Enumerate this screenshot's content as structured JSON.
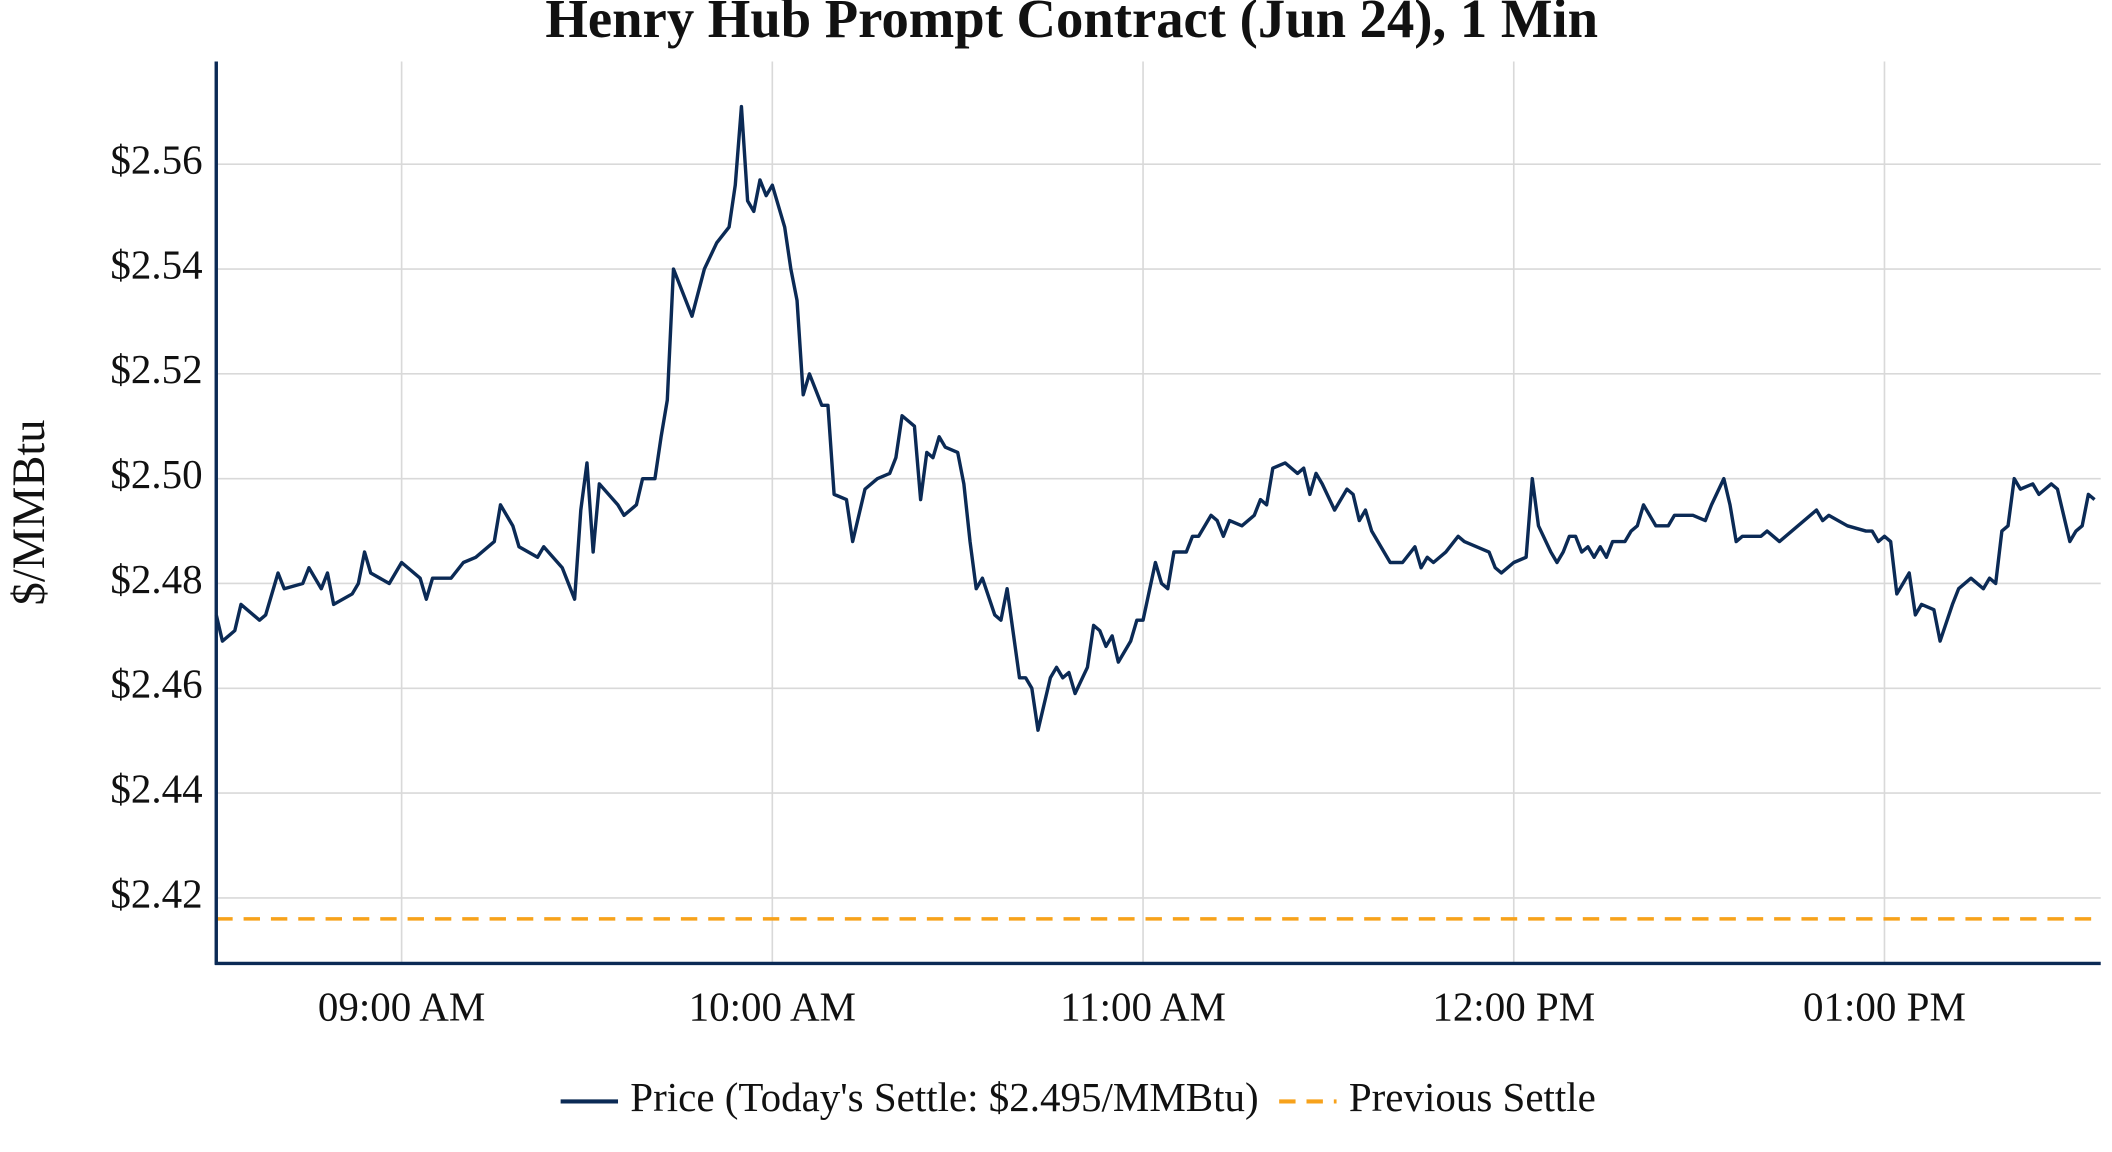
{
  "chart_data": {
    "type": "line",
    "title": "Henry Hub Prompt Contract (Jun 24), 1 Min",
    "y_label": "$/MMBtu",
    "x": [
      "08:30",
      "08:31",
      "08:33",
      "08:34",
      "08:37",
      "08:38",
      "08:40",
      "08:41",
      "08:44",
      "08:45",
      "08:47",
      "08:48",
      "08:49",
      "08:52",
      "08:53",
      "08:54",
      "08:55",
      "08:58",
      "09:00",
      "09:03",
      "09:04",
      "09:05",
      "09:08",
      "09:10",
      "09:12",
      "09:15",
      "09:16",
      "09:18",
      "09:19",
      "09:22",
      "09:23",
      "09:26",
      "09:28",
      "09:29",
      "09:30",
      "09:31",
      "09:32",
      "09:35",
      "09:36",
      "09:38",
      "09:39",
      "09:41",
      "09:42",
      "09:43",
      "09:44",
      "09:47",
      "09:49",
      "09:51",
      "09:53",
      "09:54",
      "09:55",
      "09:56",
      "09:57",
      "09:58",
      "09:59",
      "10:00",
      "10:02",
      "10:03",
      "10:04",
      "10:05",
      "10:06",
      "10:08",
      "10:09",
      "10:10",
      "10:12",
      "10:13",
      "10:15",
      "10:17",
      "10:19",
      "10:20",
      "10:21",
      "10:23",
      "10:24",
      "10:25",
      "10:26",
      "10:27",
      "10:28",
      "10:30",
      "10:31",
      "10:32",
      "10:33",
      "10:34",
      "10:36",
      "10:37",
      "10:38",
      "10:40",
      "10:41",
      "10:42",
      "10:43",
      "10:45",
      "10:46",
      "10:47",
      "10:48",
      "10:49",
      "10:51",
      "10:52",
      "10:53",
      "10:54",
      "10:55",
      "10:56",
      "10:58",
      "10:59",
      "11:00",
      "11:02",
      "11:03",
      "11:04",
      "11:05",
      "11:07",
      "11:08",
      "11:09",
      "11:11",
      "11:12",
      "11:13",
      "11:14",
      "11:16",
      "11:18",
      "11:19",
      "11:20",
      "11:21",
      "11:23",
      "11:25",
      "11:26",
      "11:27",
      "11:28",
      "11:29",
      "11:31",
      "11:33",
      "11:34",
      "11:35",
      "11:36",
      "11:37",
      "11:38",
      "11:40",
      "11:42",
      "11:44",
      "11:45",
      "11:46",
      "11:47",
      "11:49",
      "11:51",
      "11:52",
      "11:54",
      "11:56",
      "11:57",
      "11:58",
      "12:00",
      "12:02",
      "12:03",
      "12:04",
      "12:06",
      "12:07",
      "12:08",
      "12:09",
      "12:10",
      "12:11",
      "12:12",
      "12:13",
      "12:14",
      "12:15",
      "12:16",
      "12:18",
      "12:19",
      "12:20",
      "12:21",
      "12:23",
      "12:25",
      "12:26",
      "12:29",
      "12:31",
      "12:32",
      "12:34",
      "12:35",
      "12:36",
      "12:37",
      "12:40",
      "12:41",
      "12:43",
      "12:45",
      "12:47",
      "12:49",
      "12:50",
      "12:51",
      "12:54",
      "12:57",
      "12:58",
      "12:59",
      "13:00",
      "13:01",
      "13:02",
      "13:03",
      "13:04",
      "13:05",
      "13:06",
      "13:08",
      "13:09",
      "13:11",
      "13:12",
      "13:13",
      "13:14",
      "13:16",
      "13:17",
      "13:18",
      "13:19",
      "13:20",
      "13:21",
      "13:22",
      "13:24",
      "13:25",
      "13:27",
      "13:28",
      "13:30",
      "13:31",
      "13:32",
      "13:33",
      "13:34"
    ],
    "series": [
      {
        "name": "Price (Today's Settle: $2.495/MMBtu)",
        "color": "#0b2a55",
        "values": [
          2.474,
          2.469,
          2.471,
          2.476,
          2.473,
          2.474,
          2.482,
          2.479,
          2.48,
          2.483,
          2.479,
          2.482,
          2.476,
          2.478,
          2.48,
          2.486,
          2.482,
          2.48,
          2.484,
          2.481,
          2.477,
          2.481,
          2.481,
          2.484,
          2.485,
          2.488,
          2.495,
          2.491,
          2.487,
          2.485,
          2.487,
          2.483,
          2.477,
          2.494,
          2.503,
          2.486,
          2.499,
          2.495,
          2.493,
          2.495,
          2.5,
          2.5,
          2.508,
          2.515,
          2.54,
          2.531,
          2.54,
          2.545,
          2.548,
          2.556,
          2.571,
          2.553,
          2.551,
          2.557,
          2.554,
          2.556,
          2.548,
          2.54,
          2.534,
          2.516,
          2.52,
          2.514,
          2.514,
          2.497,
          2.496,
          2.488,
          2.498,
          2.5,
          2.501,
          2.504,
          2.512,
          2.51,
          2.496,
          2.505,
          2.504,
          2.508,
          2.506,
          2.505,
          2.499,
          2.488,
          2.479,
          2.481,
          2.474,
          2.473,
          2.479,
          2.462,
          2.462,
          2.46,
          2.452,
          2.462,
          2.464,
          2.462,
          2.463,
          2.459,
          2.464,
          2.472,
          2.471,
          2.468,
          2.47,
          2.465,
          2.469,
          2.473,
          2.473,
          2.484,
          2.48,
          2.479,
          2.486,
          2.486,
          2.489,
          2.489,
          2.493,
          2.492,
          2.489,
          2.492,
          2.491,
          2.493,
          2.496,
          2.495,
          2.502,
          2.503,
          2.501,
          2.502,
          2.497,
          2.501,
          2.499,
          2.494,
          2.498,
          2.497,
          2.492,
          2.494,
          2.49,
          2.488,
          2.484,
          2.484,
          2.487,
          2.483,
          2.485,
          2.484,
          2.486,
          2.489,
          2.488,
          2.487,
          2.486,
          2.483,
          2.482,
          2.484,
          2.485,
          2.5,
          2.491,
          2.486,
          2.484,
          2.486,
          2.489,
          2.489,
          2.486,
          2.487,
          2.485,
          2.487,
          2.485,
          2.488,
          2.488,
          2.49,
          2.491,
          2.495,
          2.491,
          2.491,
          2.493,
          2.493,
          2.492,
          2.495,
          2.5,
          2.495,
          2.488,
          2.489,
          2.489,
          2.49,
          2.488,
          2.49,
          2.492,
          2.494,
          2.492,
          2.493,
          2.491,
          2.49,
          2.49,
          2.488,
          2.489,
          2.488,
          2.478,
          2.48,
          2.482,
          2.474,
          2.476,
          2.475,
          2.469,
          2.476,
          2.479,
          2.48,
          2.481,
          2.479,
          2.481,
          2.48,
          2.49,
          2.491,
          2.5,
          2.498,
          2.499,
          2.497,
          2.499,
          2.498,
          2.488,
          2.49,
          2.491,
          2.497,
          2.496
        ]
      }
    ],
    "reference_lines": [
      {
        "name": "Previous Settle",
        "color": "#f7a21b",
        "value": 2.416,
        "style": "dashed"
      }
    ],
    "xlim": [
      "08:30",
      "13:35"
    ],
    "xticks": [
      {
        "value": "09:00",
        "label": "09:00 AM"
      },
      {
        "value": "10:00",
        "label": "10:00 AM"
      },
      {
        "value": "11:00",
        "label": "11:00 AM"
      },
      {
        "value": "12:00",
        "label": "12:00 PM"
      },
      {
        "value": "13:00",
        "label": "01:00 PM"
      }
    ],
    "ylim": [
      2.4075,
      2.5796
    ],
    "yticks": [
      {
        "value": 2.42,
        "label": "$2.42"
      },
      {
        "value": 2.44,
        "label": "$2.44"
      },
      {
        "value": 2.46,
        "label": "$2.46"
      },
      {
        "value": 2.48,
        "label": "$2.48"
      },
      {
        "value": 2.5,
        "label": "$2.50"
      },
      {
        "value": 2.52,
        "label": "$2.52"
      },
      {
        "value": 2.54,
        "label": "$2.54"
      },
      {
        "value": 2.56,
        "label": "$2.56"
      }
    ],
    "grid": true,
    "legend": "bottom"
  }
}
